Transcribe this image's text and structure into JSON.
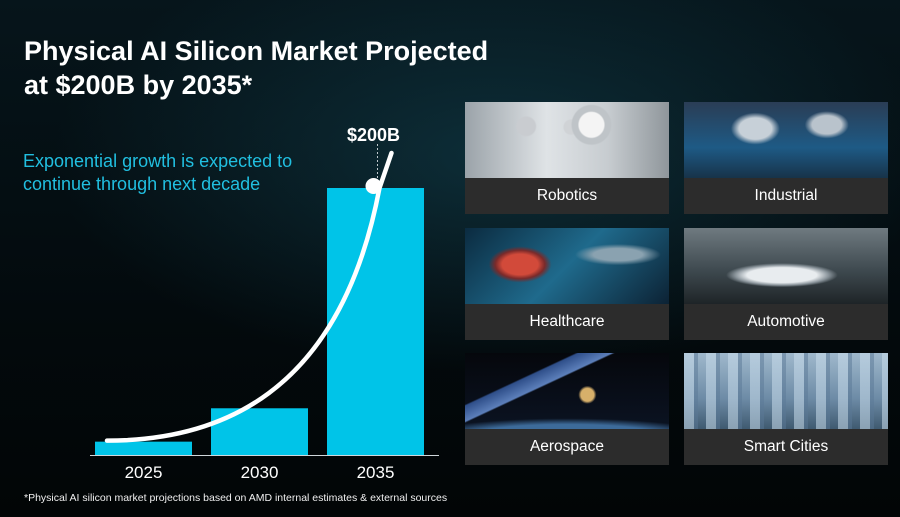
{
  "title_line1": "Physical AI Silicon Market Projected",
  "title_line2": "at $200B by 2035*",
  "subtitle_line1": "Exponential growth is expected to",
  "subtitle_line2": "continue through next decade",
  "footnote": "*Physical AI silicon market projections based on AMD internal estimates & external sources",
  "colors": {
    "bar": "#00c4e8",
    "curve": "#ffffff",
    "subtitle": "#21bfe0",
    "label_bg": "#2c2c2c"
  },
  "chart_data": {
    "type": "bar",
    "categories": [
      "2025",
      "2030",
      "2035"
    ],
    "values": [
      10,
      35,
      200
    ],
    "data_labels": [
      "",
      "",
      "$200B"
    ],
    "ylim": [
      0,
      200
    ],
    "trend": "exponential curve overlay",
    "title": "",
    "xlabel": "",
    "ylabel": ""
  },
  "tiles": [
    {
      "label": "Robotics",
      "image": "humanoid-robots-photo"
    },
    {
      "label": "Industrial",
      "image": "industrial-robot-arm-photo"
    },
    {
      "label": "Healthcare",
      "image": "digital-heart-photo"
    },
    {
      "label": "Automotive",
      "image": "concept-car-photo"
    },
    {
      "label": "Aerospace",
      "image": "satellite-earth-photo"
    },
    {
      "label": "Smart Cities",
      "image": "city-skyline-photo"
    }
  ]
}
